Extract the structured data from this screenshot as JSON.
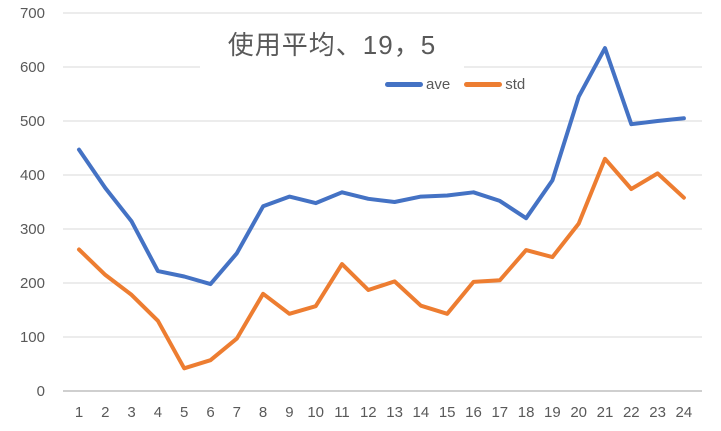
{
  "chart_data": {
    "type": "line",
    "title": "使用平均、19，5",
    "categories": [
      1,
      2,
      3,
      4,
      5,
      6,
      7,
      8,
      9,
      10,
      11,
      12,
      13,
      14,
      15,
      16,
      17,
      18,
      19,
      20,
      21,
      22,
      23,
      24
    ],
    "series": [
      {
        "name": "ave",
        "color": "#4472C4",
        "values": [
          447,
          376,
          314,
          222,
          212,
          198,
          255,
          342,
          360,
          348,
          368,
          356,
          350,
          360,
          362,
          368,
          352,
          320,
          390,
          545,
          635,
          494,
          500,
          505
        ]
      },
      {
        "name": "std",
        "color": "#ED7D31",
        "values": [
          262,
          215,
          178,
          130,
          42,
          57,
          97,
          180,
          143,
          157,
          235,
          187,
          203,
          158,
          143,
          202,
          205,
          261,
          248,
          310,
          430,
          374,
          403,
          358
        ]
      }
    ],
    "xlabel": "",
    "ylabel": "",
    "ylim": [
      0,
      700
    ],
    "yticks": [
      0,
      100,
      200,
      300,
      400,
      500,
      600,
      700
    ],
    "grid": true,
    "legend_position": "top-center",
    "colors": {
      "gridline": "#D9D9D9",
      "axis_line": "#BFBFBF",
      "tick_text": "#595959",
      "title_text": "#595959",
      "background": "#FFFFFF"
    }
  }
}
